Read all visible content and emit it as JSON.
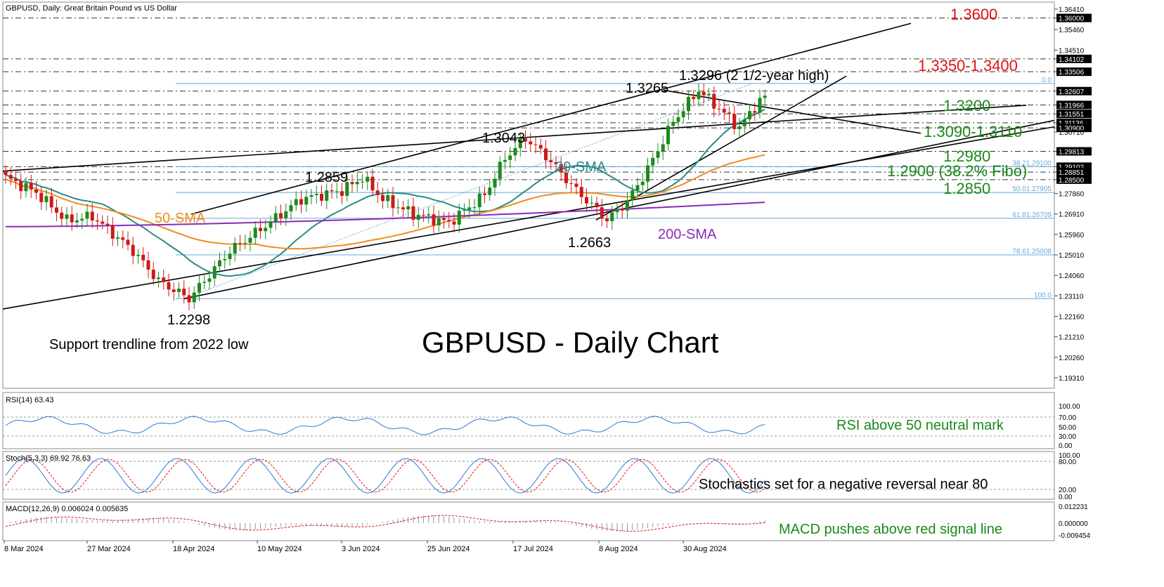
{
  "header": {
    "symbol_line": "GBPUSD, Daily:  Great Britain Pound vs US Dollar"
  },
  "chart_title": "GBPUSD - Daily Chart",
  "colors": {
    "bull": "#1e8a1e",
    "bear": "#d01818",
    "sma20": "#2a8a8a",
    "sma50": "#f08c1e",
    "sma200": "#8a2ab8",
    "red_text": "#e01010",
    "green_text": "#1a8a1a",
    "fibo": "#6aa8d8",
    "osc_blue": "#2a7ad8",
    "osc_red": "#e01010"
  },
  "price_axis": {
    "labels": [
      "1.36410",
      "1.36000",
      "1.35460",
      "1.34510",
      "1.34102",
      "1.33506",
      "1.32607",
      "1.31966",
      "1.31551",
      "1.31136",
      "1.30900",
      "1.30710",
      "1.29813",
      "1.29102",
      "1.28851",
      "1.28500",
      "1.27860",
      "1.26910",
      "1.25960",
      "1.25010",
      "1.24060",
      "1.23110",
      "1.22160",
      "1.21210",
      "1.20260",
      "1.19310"
    ],
    "highlighted": [
      "1.36000",
      "1.34102",
      "1.33506",
      "1.32607",
      "1.31966",
      "1.31551",
      "1.31136",
      "1.30900",
      "1.29813",
      "1.29102",
      "1.28851",
      "1.28500"
    ]
  },
  "date_axis": {
    "labels": [
      "8 Mar 2024",
      "27 Mar 2024",
      "18 Apr 2024",
      "10 May 2024",
      "3 Jun 2024",
      "25 Jun 2024",
      "17 Jul 2024",
      "8 Aug 2024",
      "30 Aug 2024"
    ]
  },
  "levels": [
    {
      "label": "1.3600",
      "color": "red"
    },
    {
      "label": "1.3350-1.3400",
      "color": "red"
    },
    {
      "label": "1.3200",
      "color": "green"
    },
    {
      "label": "1.3090-1.3110",
      "color": "green"
    },
    {
      "label": "1.2980",
      "color": "green"
    },
    {
      "label": "1.2900 (38.2% Fibo)",
      "color": "green"
    },
    {
      "label": "1.2850",
      "color": "green"
    }
  ],
  "fibo_labels": [
    "0.0",
    "38.21.29100",
    "50.01.27905",
    "61.81.26709",
    "78.61.25008",
    "100.0"
  ],
  "annotations": {
    "high_2_5y": "1.3296 (2 1/2-year high)",
    "p1_3265": "1.3265",
    "p1_3043": "1.3043",
    "p1_2859": "1.2859",
    "p1_2663": "1.2663",
    "p1_2298": "1.2298",
    "support_trendline": "Support trendline from 2022 low",
    "sma20": "20-SMA",
    "sma50": "50-SMA",
    "sma200": "200-SMA"
  },
  "rsi_panel": {
    "header": "RSI(14) 63.43",
    "note": "RSI above 50 neutral mark",
    "axis": [
      "100.00",
      "70.00",
      "50.00",
      "30.00",
      "0.00"
    ]
  },
  "stoch_panel": {
    "header": "Stoch(5,3,3) 69.92 76.63",
    "note": "Stochastics set for a negative reversal near 80",
    "axis": [
      "100.00",
      "80.00",
      "20.00",
      "0.00"
    ]
  },
  "macd_panel": {
    "header": "MACD(12,26,9) 0.006024 0.005635",
    "note": "MACD pushes above red signal line",
    "axis": [
      "0.012231",
      "0.000000",
      "-0.009454"
    ]
  },
  "chart_data": [
    {
      "type": "candlestick",
      "title": "GBPUSD - Daily Chart",
      "ylim": [
        1.193,
        1.3641
      ],
      "key_points": [
        {
          "x": "18 Apr 2024",
          "y": 1.2298
        },
        {
          "x": "3 Jun 2024",
          "y": 1.2859
        },
        {
          "x": "17 Jul 2024",
          "y": 1.3043
        },
        {
          "x": "8 Aug 2024",
          "y": 1.2663
        },
        {
          "x": "30 Aug 2024",
          "y": 1.3265
        },
        {
          "x": "Sep 2024",
          "y": 1.3296
        }
      ],
      "close_path": [
        1.286,
        1.282,
        1.279,
        1.281,
        1.276,
        1.268,
        1.266,
        1.262,
        1.264,
        1.267,
        1.263,
        1.258,
        1.262,
        1.27,
        1.265,
        1.255,
        1.242,
        1.238,
        1.24,
        1.234,
        1.23,
        1.236,
        1.244,
        1.25,
        1.252,
        1.247,
        1.252,
        1.251,
        1.258,
        1.262,
        1.267,
        1.272,
        1.274,
        1.276,
        1.279,
        1.276,
        1.28,
        1.283,
        1.283,
        1.285,
        1.281,
        1.276,
        1.279,
        1.274,
        1.272,
        1.27,
        1.266,
        1.268,
        1.264,
        1.264,
        1.266,
        1.263,
        1.267,
        1.27,
        1.276,
        1.28,
        1.284,
        1.292,
        1.296,
        1.299,
        1.302,
        1.3,
        1.295,
        1.293,
        1.288,
        1.285,
        1.282,
        1.279,
        1.275,
        1.272,
        1.268,
        1.271,
        1.276,
        1.282,
        1.286,
        1.293,
        1.299,
        1.307,
        1.315,
        1.322,
        1.324,
        1.32,
        1.317,
        1.315,
        1.316,
        1.319,
        1.317,
        1.311,
        1.307,
        1.306,
        1.309,
        1.312,
        1.318,
        1.32,
        1.3235
      ]
    },
    {
      "type": "line",
      "title": "RSI(14)",
      "ylim": [
        0,
        100
      ],
      "last": 63.43
    },
    {
      "type": "line",
      "title": "Stoch(5,3,3)",
      "ylim": [
        0,
        100
      ],
      "series": [
        {
          "name": "Stoch",
          "last": 69.92
        },
        {
          "name": "Signal",
          "last": 76.63
        }
      ]
    },
    {
      "type": "bar",
      "title": "MACD(12,26,9)",
      "ylim": [
        -0.009454,
        0.012231
      ],
      "series": [
        {
          "name": "MACD",
          "last": 0.006024
        },
        {
          "name": "Signal",
          "last": 0.005635
        }
      ]
    }
  ]
}
